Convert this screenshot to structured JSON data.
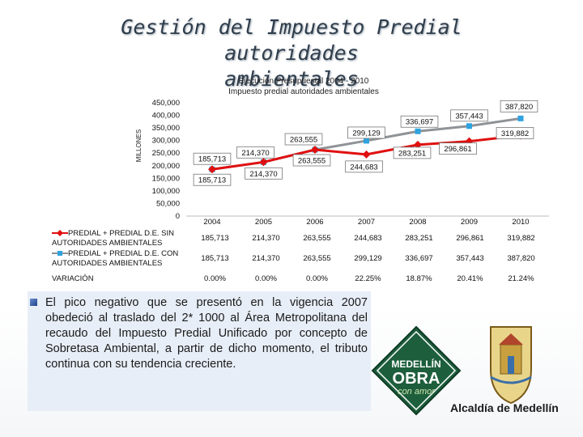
{
  "slide": {
    "title_line1": "Gestión del Impuesto Predial autoridades",
    "title_line2": "ambientales",
    "body_text": "El pico negativo que se presentó en la vigencia 2007 obedeció al traslado del 2* 1000 al Área Metropolitana del recaudo del Impuesto Predial Unificado por concepto de Sobretasa Ambiental, a partir de dicho momento, el tributo continua con su tendencia creciente.",
    "logo": {
      "badge_line1": "MEDELLÍN",
      "badge_line2": "OBRA",
      "badge_line3": "con amor",
      "name": "Alcaldía de Medellín"
    }
  },
  "chart_data": {
    "type": "line",
    "title": "Ejecución Presupuestal 2004 - 2010",
    "subtitle": "Impuesto predial autoridades ambientales",
    "ylabel": "MILLONES",
    "ylim": [
      0,
      450000
    ],
    "yticks": [
      "450,000",
      "400,000",
      "350,000",
      "300,000",
      "250,000",
      "200,000",
      "150,000",
      "100,000",
      "50,000",
      "0"
    ],
    "categories": [
      "2004",
      "2005",
      "2006",
      "2007",
      "2008",
      "2009",
      "2010"
    ],
    "series": [
      {
        "name": "PREDIAL + PREDIAL D.E. SIN AUTORIDADES AMBIENTALES",
        "values": [
          185713,
          214370,
          263555,
          244683,
          283251,
          296861,
          319882
        ],
        "labels": [
          "185,713",
          "214,370",
          "263,555",
          "244,683",
          "283,251",
          "296,861",
          "319,882"
        ],
        "color": "#e01010"
      },
      {
        "name": "PREDIAL + PREDIAL D.E. CON AUTORIDADES AMBIENTALES",
        "values": [
          185713,
          214370,
          263555,
          299129,
          336697,
          357443,
          387820
        ],
        "labels": [
          "185,713",
          "214,370",
          "263,555",
          "299,129",
          "336,697",
          "357,443",
          "387,820"
        ],
        "color": "#2ea3e0"
      }
    ],
    "extra_row": {
      "name": "VARIACIÓN",
      "values": [
        "0.00%",
        "0.00%",
        "0.00%",
        "22.25%",
        "18.87%",
        "20.41%",
        "21.24%"
      ]
    },
    "grid": false,
    "legend": "data-table"
  }
}
